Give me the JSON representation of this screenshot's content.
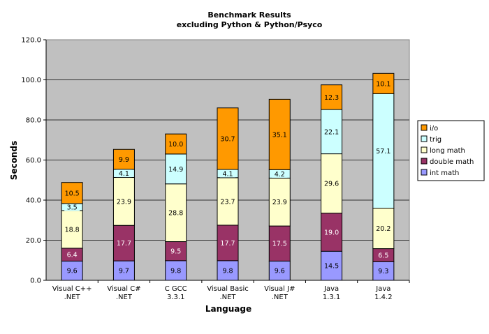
{
  "chart_data": {
    "type": "bar",
    "stacked": true,
    "title": [
      "Benchmark Results",
      "excluding Python & Python/Psyco"
    ],
    "xlabel": "Language",
    "ylabel": "Seconds",
    "ylim": [
      0,
      120
    ],
    "yticks": [
      "0.0",
      "20.0",
      "40.0",
      "60.0",
      "80.0",
      "100.0",
      "120.0"
    ],
    "grid": true,
    "legend_position": "right",
    "categories": [
      [
        "Visual C++",
        ".NET"
      ],
      [
        "Visual C#",
        ".NET"
      ],
      [
        "C GCC",
        "3.3.1"
      ],
      [
        "Visual Basic",
        ".NET"
      ],
      [
        "Visual J#",
        ".NET"
      ],
      [
        "Java",
        "1.3.1"
      ],
      [
        "Java",
        "1.4.2"
      ]
    ],
    "series": [
      {
        "name": "int math",
        "color": "#9999ff",
        "label_color": "#000000",
        "values": [
          9.6,
          9.7,
          9.8,
          9.8,
          9.6,
          14.5,
          9.3
        ]
      },
      {
        "name": "double math",
        "color": "#993366",
        "label_color": "#ffffff",
        "values": [
          6.4,
          17.7,
          9.5,
          17.7,
          17.5,
          19.0,
          6.5
        ]
      },
      {
        "name": "long math",
        "color": "#ffffcc",
        "label_color": "#000000",
        "values": [
          18.8,
          23.9,
          28.8,
          23.7,
          23.9,
          29.6,
          20.2
        ]
      },
      {
        "name": "trig",
        "color": "#ccffff",
        "label_color": "#000000",
        "values": [
          3.5,
          4.1,
          14.9,
          4.1,
          4.2,
          22.1,
          57.1
        ]
      },
      {
        "name": "i/o",
        "color": "#ff9900",
        "label_color": "#000000",
        "values": [
          10.5,
          9.9,
          10.0,
          30.7,
          35.1,
          12.3,
          10.1
        ]
      }
    ],
    "legend_order": [
      "i/o",
      "trig",
      "long math",
      "double math",
      "int math"
    ]
  }
}
